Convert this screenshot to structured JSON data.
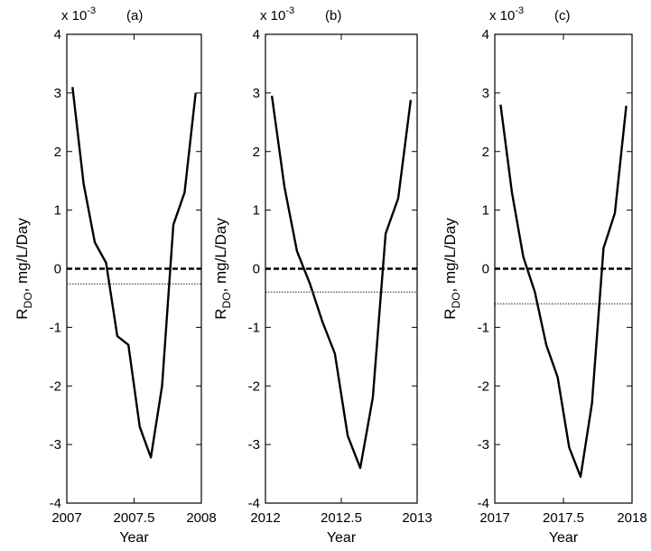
{
  "figure": {
    "background": "#ffffff",
    "axis_color": "#000000"
  },
  "chart_data": [
    {
      "type": "line",
      "panel_label": "(a)",
      "exponent_label": "x 10",
      "exponent_power": "-3",
      "xlabel": "Year",
      "ylabel_main": "R",
      "ylabel_sub": "DO",
      "ylabel_rest": ", mg/L/Day",
      "xlim": [
        2007,
        2008
      ],
      "ylim": [
        -4,
        4
      ],
      "xticks": [
        2007,
        2007.5,
        2008
      ],
      "xtick_labels": [
        "2007",
        "2007.5",
        "2008"
      ],
      "yticks": [
        -4,
        -3,
        -2,
        -1,
        0,
        1,
        2,
        3,
        4
      ],
      "ytick_labels": [
        "-4",
        "-3",
        "-2",
        "-1",
        "0",
        "1",
        "2",
        "3",
        "4"
      ],
      "grid": false,
      "series": [
        {
          "style": "solid",
          "color": "#000000",
          "x": [
            2007.042,
            2007.125,
            2007.208,
            2007.292,
            2007.375,
            2007.458,
            2007.542,
            2007.625,
            2007.708,
            2007.792,
            2007.875,
            2007.958
          ],
          "y": [
            3.1,
            1.45,
            0.45,
            0.1,
            -1.15,
            -1.3,
            -2.7,
            -3.22,
            -2.0,
            0.75,
            1.3,
            3.0
          ]
        },
        {
          "style": "dashed",
          "color": "#000000",
          "x": [
            2007,
            2008
          ],
          "y": [
            0,
            0
          ]
        },
        {
          "style": "dotted",
          "color": "#555555",
          "x": [
            2007,
            2008
          ],
          "y": [
            -0.26,
            -0.26
          ]
        }
      ]
    },
    {
      "type": "line",
      "panel_label": "(b)",
      "exponent_label": "x 10",
      "exponent_power": "-3",
      "xlabel": "Year",
      "ylabel_main": "R",
      "ylabel_sub": "DO",
      "ylabel_rest": ", mg/L/Day",
      "xlim": [
        2012,
        2013
      ],
      "ylim": [
        -4,
        4
      ],
      "xticks": [
        2012,
        2012.5,
        2013
      ],
      "xtick_labels": [
        "2012",
        "2012.5",
        "2013"
      ],
      "yticks": [
        -4,
        -3,
        -2,
        -1,
        0,
        1,
        2,
        3,
        4
      ],
      "ytick_labels": [
        "-4",
        "-3",
        "-2",
        "-1",
        "0",
        "1",
        "2",
        "3",
        "4"
      ],
      "grid": false,
      "series": [
        {
          "style": "solid",
          "color": "#000000",
          "x": [
            2012.042,
            2012.125,
            2012.208,
            2012.292,
            2012.375,
            2012.458,
            2012.542,
            2012.625,
            2012.708,
            2012.792,
            2012.875,
            2012.958
          ],
          "y": [
            2.95,
            1.4,
            0.3,
            -0.25,
            -0.9,
            -1.45,
            -2.85,
            -3.4,
            -2.2,
            0.6,
            1.2,
            2.88
          ]
        },
        {
          "style": "dashed",
          "color": "#000000",
          "x": [
            2012,
            2013
          ],
          "y": [
            0,
            0
          ]
        },
        {
          "style": "dotted",
          "color": "#555555",
          "x": [
            2012,
            2013
          ],
          "y": [
            -0.4,
            -0.4
          ]
        }
      ]
    },
    {
      "type": "line",
      "panel_label": "(c)",
      "exponent_label": "x 10",
      "exponent_power": "-3",
      "xlabel": "Year",
      "ylabel_main": "R",
      "ylabel_sub": "DO",
      "ylabel_rest": ", mg/L/Day",
      "xlim": [
        2017,
        2018
      ],
      "ylim": [
        -4,
        4
      ],
      "xticks": [
        2017,
        2017.5,
        2018
      ],
      "xtick_labels": [
        "2017",
        "2017.5",
        "2018"
      ],
      "yticks": [
        -4,
        -3,
        -2,
        -1,
        0,
        1,
        2,
        3,
        4
      ],
      "ytick_labels": [
        "-4",
        "-3",
        "-2",
        "-1",
        "0",
        "1",
        "2",
        "3",
        "4"
      ],
      "grid": false,
      "series": [
        {
          "style": "solid",
          "color": "#000000",
          "x": [
            2017.042,
            2017.125,
            2017.208,
            2017.292,
            2017.375,
            2017.458,
            2017.542,
            2017.625,
            2017.708,
            2017.792,
            2017.875,
            2017.958
          ],
          "y": [
            2.8,
            1.3,
            0.2,
            -0.4,
            -1.3,
            -1.85,
            -3.05,
            -3.55,
            -2.3,
            0.35,
            0.95,
            2.78
          ]
        },
        {
          "style": "dashed",
          "color": "#000000",
          "x": [
            2017,
            2018
          ],
          "y": [
            0,
            0
          ]
        },
        {
          "style": "dotted",
          "color": "#555555",
          "x": [
            2017,
            2018
          ],
          "y": [
            -0.6,
            -0.6
          ]
        }
      ]
    }
  ]
}
